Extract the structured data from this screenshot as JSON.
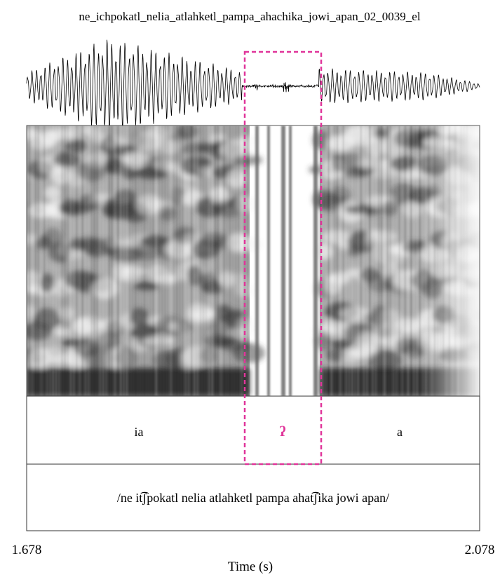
{
  "title": "ne_ichpokatl_nelia_atlahketl_pampa_ahachika_jowi_apan_02_0039_el",
  "tiers": [
    {
      "intervals": [
        "ia",
        "ʔ",
        "a"
      ]
    },
    {
      "intervals": [
        "/ne it͡ʃpokatl nelia atlahketl pampa ahat͡ʃika jowi apan/"
      ]
    }
  ],
  "x_axis": {
    "start": "1.678",
    "end": "2.078",
    "label": "Time (s)"
  }
}
